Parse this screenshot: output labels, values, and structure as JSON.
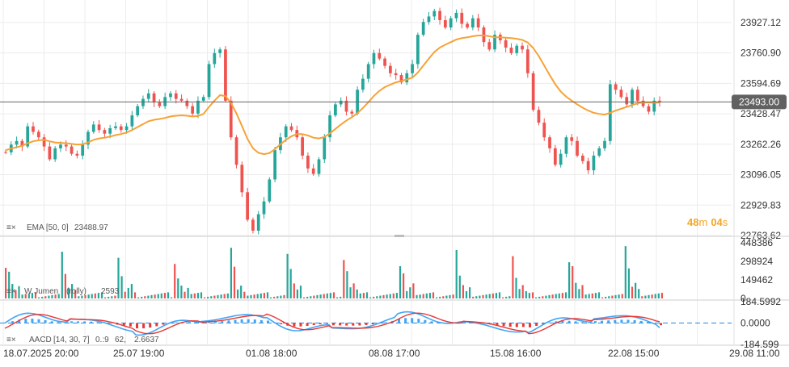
{
  "chart_data": {
    "type": "candlestick",
    "price_axis": {
      "ticks": [
        {
          "label": "23927.12",
          "value": 23927.12
        },
        {
          "label": "23760.90",
          "value": 23760.9
        },
        {
          "label": "23594.69",
          "value": 23594.69
        },
        {
          "label": "23428.47",
          "value": 23428.47
        },
        {
          "label": "23262.26",
          "value": 23262.26
        },
        {
          "label": "23096.05",
          "value": 23096.05
        },
        {
          "label": "22929.83",
          "value": 22929.83
        },
        {
          "label": "22763.62",
          "value": 22763.62
        }
      ],
      "range": [
        22763.62,
        24050
      ]
    },
    "current_price": {
      "label": "23493.00",
      "value": 23493.0
    },
    "countdown": {
      "minutes": "48",
      "m": "m",
      "seconds": "04",
      "s": "s"
    },
    "x_labels": [
      "18.07.2025 20:00",
      "25.07 19:00",
      "01.08 18:00",
      "08.08 17:00",
      "15.08 16:00",
      "22.08 15:00",
      "29.08 11:00"
    ],
    "candles": [
      [
        23220,
        23218
      ],
      [
        23218,
        23260
      ],
      [
        23260,
        23280
      ],
      [
        23280,
        23250
      ],
      [
        23250,
        23360
      ],
      [
        23360,
        23330
      ],
      [
        23330,
        23300
      ],
      [
        23300,
        23250
      ],
      [
        23250,
        23180
      ],
      [
        23180,
        23240
      ],
      [
        23240,
        23260
      ],
      [
        23260,
        23250
      ],
      [
        23250,
        23210
      ],
      [
        23210,
        23200
      ],
      [
        23200,
        23260
      ],
      [
        23260,
        23330
      ],
      [
        23330,
        23370
      ],
      [
        23370,
        23340
      ],
      [
        23340,
        23320
      ],
      [
        23320,
        23350
      ],
      [
        23350,
        23360
      ],
      [
        23360,
        23340
      ],
      [
        23340,
        23360
      ],
      [
        23360,
        23420
      ],
      [
        23420,
        23470
      ],
      [
        23470,
        23510
      ],
      [
        23510,
        23540
      ],
      [
        23540,
        23490
      ],
      [
        23490,
        23470
      ],
      [
        23470,
        23520
      ],
      [
        23520,
        23540
      ],
      [
        23540,
        23510
      ],
      [
        23510,
        23500
      ],
      [
        23500,
        23470
      ],
      [
        23470,
        23430
      ],
      [
        23430,
        23500
      ],
      [
        23500,
        23520
      ],
      [
        23520,
        23700
      ],
      [
        23700,
        23760
      ],
      [
        23760,
        23780
      ],
      [
        23780,
        23500
      ],
      [
        23500,
        23300
      ],
      [
        23300,
        23150
      ],
      [
        23150,
        23000
      ],
      [
        23000,
        22850
      ],
      [
        22850,
        22790
      ],
      [
        22790,
        22880
      ],
      [
        22880,
        22950
      ],
      [
        22950,
        23070
      ],
      [
        23070,
        23230
      ],
      [
        23230,
        23300
      ],
      [
        23300,
        23360
      ],
      [
        23360,
        23340
      ],
      [
        23340,
        23300
      ],
      [
        23300,
        23200
      ],
      [
        23200,
        23130
      ],
      [
        23130,
        23100
      ],
      [
        23100,
        23180
      ],
      [
        23180,
        23300
      ],
      [
        23300,
        23420
      ],
      [
        23420,
        23480
      ],
      [
        23480,
        23500
      ],
      [
        23500,
        23440
      ],
      [
        23440,
        23430
      ],
      [
        23430,
        23560
      ],
      [
        23560,
        23620
      ],
      [
        23620,
        23700
      ],
      [
        23700,
        23760
      ],
      [
        23760,
        23730
      ],
      [
        23730,
        23690
      ],
      [
        23690,
        23650
      ],
      [
        23650,
        23640
      ],
      [
        23640,
        23600
      ],
      [
        23600,
        23650
      ],
      [
        23650,
        23700
      ],
      [
        23700,
        23860
      ],
      [
        23860,
        23930
      ],
      [
        23930,
        23960
      ],
      [
        23960,
        23990
      ],
      [
        23990,
        23940
      ],
      [
        23940,
        23900
      ],
      [
        23900,
        23950
      ],
      [
        23950,
        23980
      ],
      [
        23980,
        23920
      ],
      [
        23920,
        23900
      ],
      [
        23900,
        23950
      ],
      [
        23950,
        23900
      ],
      [
        23900,
        23820
      ],
      [
        23820,
        23780
      ],
      [
        23780,
        23860
      ],
      [
        23860,
        23830
      ],
      [
        23830,
        23790
      ],
      [
        23790,
        23760
      ],
      [
        23760,
        23800
      ],
      [
        23800,
        23780
      ],
      [
        23780,
        23650
      ],
      [
        23650,
        23450
      ],
      [
        23450,
        23380
      ],
      [
        23380,
        23300
      ],
      [
        23300,
        23240
      ],
      [
        23240,
        23150
      ],
      [
        23150,
        23210
      ],
      [
        23210,
        23300
      ],
      [
        23300,
        23280
      ],
      [
        23280,
        23200
      ],
      [
        23200,
        23170
      ],
      [
        23170,
        23120
      ],
      [
        23120,
        23200
      ],
      [
        23200,
        23240
      ],
      [
        23240,
        23280
      ],
      [
        23280,
        23590
      ],
      [
        23590,
        23560
      ],
      [
        23560,
        23520
      ],
      [
        23520,
        23480
      ],
      [
        23480,
        23560
      ],
      [
        23560,
        23500
      ],
      [
        23500,
        23470
      ],
      [
        23470,
        23440
      ],
      [
        23440,
        23500
      ],
      [
        23500,
        23493
      ]
    ],
    "ema": {
      "label": "EMA [50, 0]",
      "value": "23488.97",
      "values": [
        23230,
        23238,
        23246,
        23254,
        23268,
        23278,
        23284,
        23286,
        23278,
        23272,
        23270,
        23268,
        23264,
        23260,
        23262,
        23272,
        23286,
        23294,
        23298,
        23304,
        23312,
        23318,
        23326,
        23340,
        23356,
        23372,
        23388,
        23396,
        23400,
        23406,
        23414,
        23418,
        23420,
        23418,
        23414,
        23416,
        23428,
        23466,
        23500,
        23530,
        23525,
        23488,
        23430,
        23362,
        23292,
        23240,
        23215,
        23208,
        23214,
        23236,
        23262,
        23286,
        23306,
        23318,
        23318,
        23310,
        23298,
        23294,
        23302,
        23322,
        23346,
        23370,
        23392,
        23410,
        23432,
        23460,
        23492,
        23526,
        23554,
        23574,
        23588,
        23600,
        23608,
        23616,
        23626,
        23654,
        23692,
        23730,
        23766,
        23790,
        23806,
        23820,
        23834,
        23842,
        23846,
        23852,
        23856,
        23856,
        23852,
        23846,
        23846,
        23844,
        23842,
        23838,
        23832,
        23818,
        23788,
        23744,
        23692,
        23640,
        23590,
        23550,
        23522,
        23500,
        23480,
        23462,
        23446,
        23434,
        23428,
        23424,
        23434,
        23446,
        23456,
        23466,
        23476,
        23486,
        23490,
        23490,
        23489,
        23489
      ]
    },
    "volume": {
      "label_prefix": "W Jumen",
      "label_mid": "(rolly)",
      "label_value": "2593",
      "ticks": [
        {
          "label": "448386",
          "value": 448386
        },
        {
          "label": "298924",
          "value": 298924
        },
        {
          "label": "149462",
          "value": 149462
        },
        {
          "label": "0",
          "value": 0
        }
      ],
      "max": 448386,
      "colors": {
        "up": "#26a69a",
        "down": "#ef5350"
      }
    },
    "macd": {
      "label_prefix": "AACD",
      "params": "[14, 30, 7]",
      "value_a": "0.:9",
      "value_b": "62,",
      "value_c": "2.6637",
      "ticks": [
        {
          "label": "184.5992",
          "value": 184.5992
        },
        {
          "label": "0.0000",
          "value": 0
        },
        {
          "label": "-184.599",
          "value": -184.599
        }
      ],
      "range": [
        -184.599,
        184.5992
      ],
      "signal_color": "#e53935",
      "macd_color": "#42a5f5",
      "zero_line_color": "#1e88e5"
    },
    "colors": {
      "up": "#26a69a",
      "down": "#ef5350",
      "ema": "#f7a235",
      "grid": "#ececec",
      "price_line": "#666666",
      "price_tag_bg": "#616161",
      "countdown": "#f5a623"
    }
  }
}
